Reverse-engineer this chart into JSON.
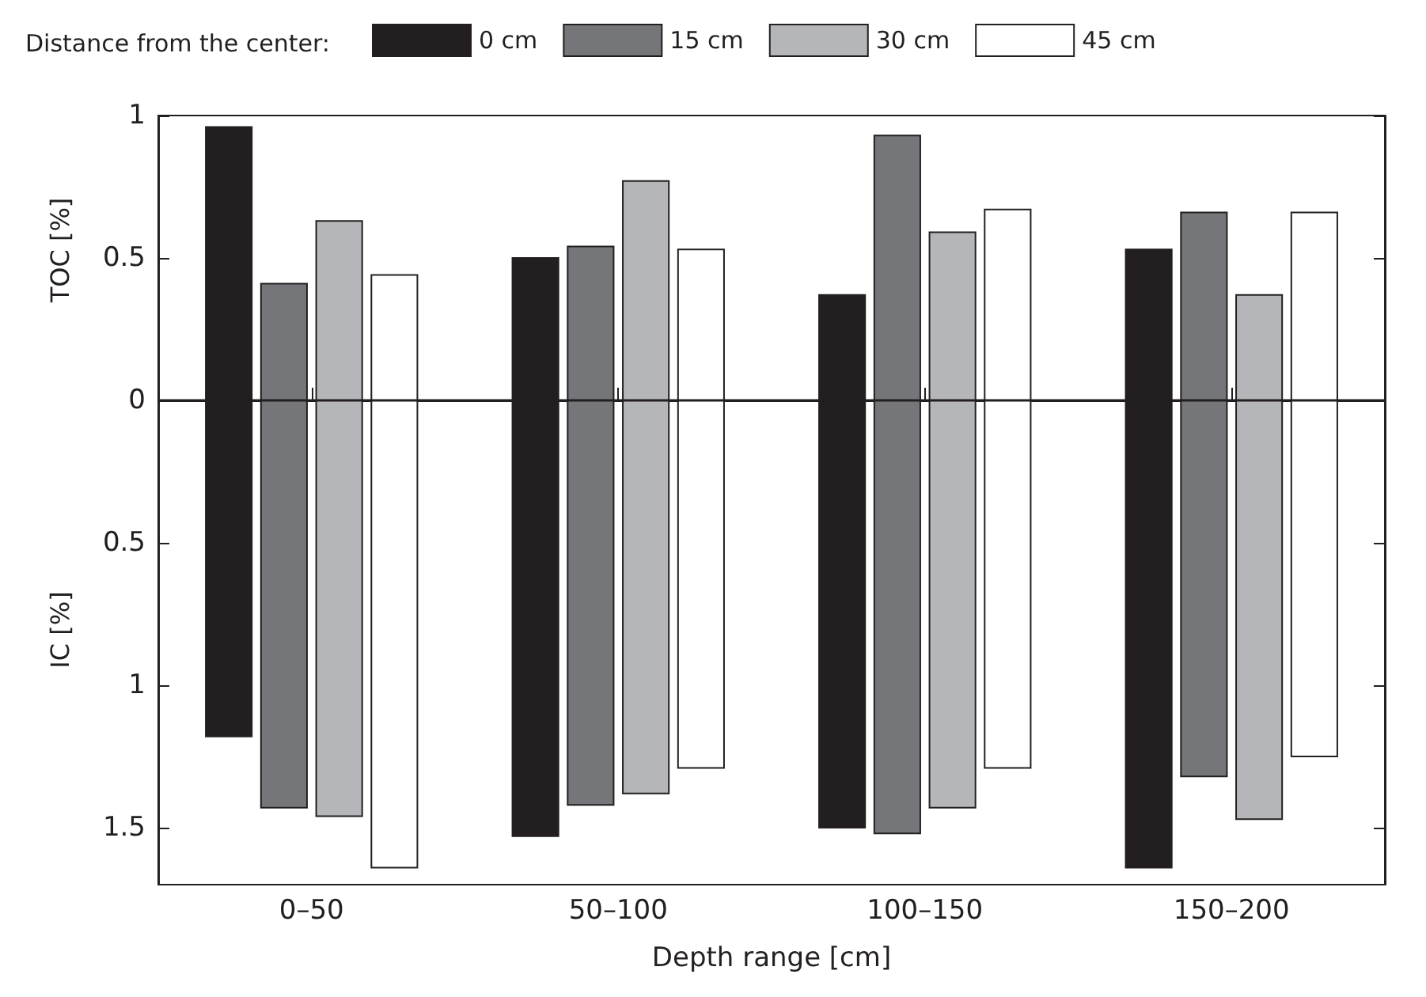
{
  "chart_data": {
    "type": "bar",
    "xlabel": "Depth range [cm]",
    "ylabel": "TOC [%]",
    "annotations": [
      "IC [%]"
    ],
    "legend_title": "Distance from the center:",
    "legend": "top",
    "categories": [
      "0–50",
      "50–100",
      "100–150",
      "150–200"
    ],
    "series": [
      {
        "name": "0 cm",
        "color": "#231f20",
        "base": [
          -1.18,
          -1.53,
          -1.5,
          -1.64
        ],
        "values": [
          2.14,
          2.03,
          1.87,
          2.17
        ]
      },
      {
        "name": "15 cm",
        "color": "#75767a",
        "base": [
          -1.43,
          -1.42,
          -1.52,
          -1.32
        ],
        "values": [
          1.84,
          1.96,
          2.45,
          1.98
        ]
      },
      {
        "name": "30 cm",
        "color": "#b5b6b9",
        "base": [
          -1.46,
          -1.38,
          -1.43,
          -1.47
        ],
        "values": [
          2.09,
          2.15,
          2.02,
          1.84
        ]
      },
      {
        "name": "45 cm",
        "color": "#ffffff",
        "base": [
          -1.64,
          -1.29,
          -1.29,
          -1.25
        ],
        "values": [
          2.08,
          1.82,
          1.96,
          1.91
        ]
      }
    ],
    "ylim": [
      -1.7,
      1
    ],
    "yticks": [
      {
        "value": -1.5,
        "label": "1.5"
      },
      {
        "value": -1,
        "label": "1"
      },
      {
        "value": -0.5,
        "label": "0.5"
      },
      0,
      0.5,
      1
    ],
    "ref_lines": [
      {
        "axis": "y",
        "value": 0,
        "color": "#231f20"
      }
    ],
    "grid": false
  }
}
